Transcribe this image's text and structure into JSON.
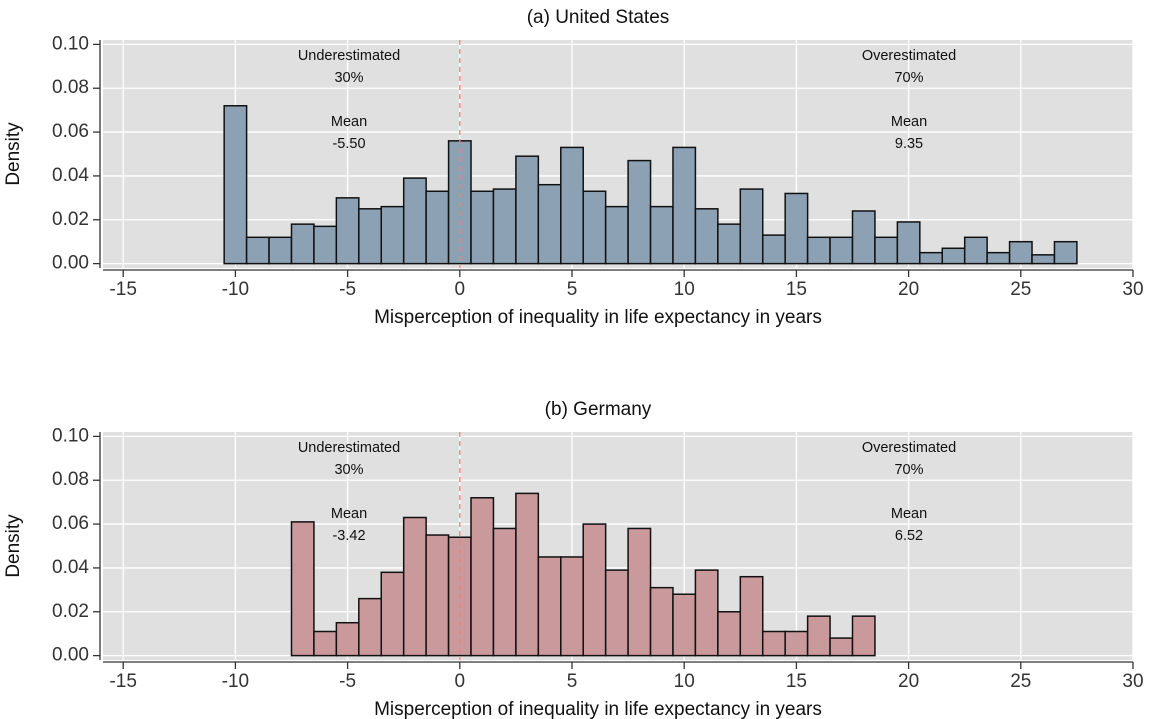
{
  "chart_data": [
    {
      "type": "histogram",
      "title": "(a) United States",
      "x_label": "Misperception of inequality in life expectancy in years",
      "y_label": "Density",
      "bins": [
        -10.5,
        -9.5,
        -8.5,
        -7.5,
        -6.5,
        -5.5,
        -4.5,
        -3.5,
        -2.5,
        -1.5,
        -0.5,
        0.5,
        1.5,
        2.5,
        3.5,
        4.5,
        5.5,
        6.5,
        7.5,
        8.5,
        9.5,
        10.5,
        11.5,
        12.5,
        13.5,
        14.5,
        15.5,
        16.5,
        17.5,
        18.5,
        19.5,
        20.5,
        21.5,
        22.5,
        23.5,
        24.5,
        25.5,
        26.5,
        27.5
      ],
      "values": [
        0.072,
        0.012,
        0.012,
        0.018,
        0.017,
        0.03,
        0.025,
        0.026,
        0.039,
        0.033,
        0.056,
        0.033,
        0.034,
        0.049,
        0.036,
        0.053,
        0.033,
        0.026,
        0.047,
        0.026,
        0.053,
        0.025,
        0.018,
        0.034,
        0.013,
        0.032,
        0.012,
        0.012,
        0.024,
        0.012,
        0.019,
        0.005,
        0.007,
        0.012,
        0.005,
        0.01,
        0.004,
        0.01
      ],
      "color": "#8da1b4",
      "xlim": [
        -15.9,
        30
      ],
      "ylim": [
        -0.002,
        0.102
      ],
      "xticks": [
        {
          "value": -15,
          "label": "-15"
        },
        {
          "value": -10,
          "label": "-10"
        },
        {
          "value": -5,
          "label": "-5"
        },
        0,
        5,
        10,
        15,
        20,
        25,
        30
      ],
      "yticks": [
        {
          "value": 0,
          "label": "0.00"
        },
        {
          "value": 0.02,
          "label": "0.02"
        },
        {
          "value": 0.04,
          "label": "0.04"
        },
        {
          "value": 0.06,
          "label": "0.06"
        },
        {
          "value": 0.08,
          "label": "0.08"
        },
        {
          "value": 0.1,
          "label": "0.10"
        }
      ],
      "grid": true,
      "vline": 0,
      "annotations": [
        [
          "Underestimated",
          "30%",
          "Mean",
          "-5.50"
        ],
        [
          "Overestimated",
          "70%",
          "Mean",
          "9.35"
        ]
      ]
    },
    {
      "type": "histogram",
      "title": "(b) Germany",
      "x_label": "Misperception of inequality in life expectancy in years",
      "y_label": "Density",
      "bins": [
        -7.5,
        -6.5,
        -5.5,
        -4.5,
        -3.5,
        -2.5,
        -1.5,
        -0.5,
        0.5,
        1.5,
        2.5,
        3.5,
        4.5,
        5.5,
        6.5,
        7.5,
        8.5,
        9.5,
        10.5,
        11.5,
        12.5,
        13.5,
        14.5,
        15.5,
        16.5,
        17.5,
        18.5
      ],
      "values": [
        0.061,
        0.011,
        0.015,
        0.026,
        0.038,
        0.063,
        0.055,
        0.054,
        0.072,
        0.058,
        0.074,
        0.045,
        0.045,
        0.06,
        0.039,
        0.058,
        0.031,
        0.028,
        0.039,
        0.02,
        0.036,
        0.011,
        0.011,
        0.018,
        0.008,
        0.018
      ],
      "color": "#c9999c",
      "xlim": [
        -15.9,
        30
      ],
      "ylim": [
        -0.002,
        0.102
      ],
      "xticks": [
        {
          "value": -15,
          "label": "-15"
        },
        {
          "value": -10,
          "label": "-10"
        },
        {
          "value": -5,
          "label": "-5"
        },
        0,
        5,
        10,
        15,
        20,
        25,
        30
      ],
      "yticks": [
        {
          "value": 0,
          "label": "0.00"
        },
        {
          "value": 0.02,
          "label": "0.02"
        },
        {
          "value": 0.04,
          "label": "0.04"
        },
        {
          "value": 0.06,
          "label": "0.06"
        },
        {
          "value": 0.08,
          "label": "0.08"
        },
        {
          "value": 0.1,
          "label": "0.10"
        }
      ],
      "grid": true,
      "vline": 0,
      "annotations": [
        [
          "Underestimated",
          "30%",
          "Mean",
          "-3.42"
        ],
        [
          "Overestimated",
          "70%",
          "Mean",
          "6.52"
        ]
      ]
    }
  ]
}
